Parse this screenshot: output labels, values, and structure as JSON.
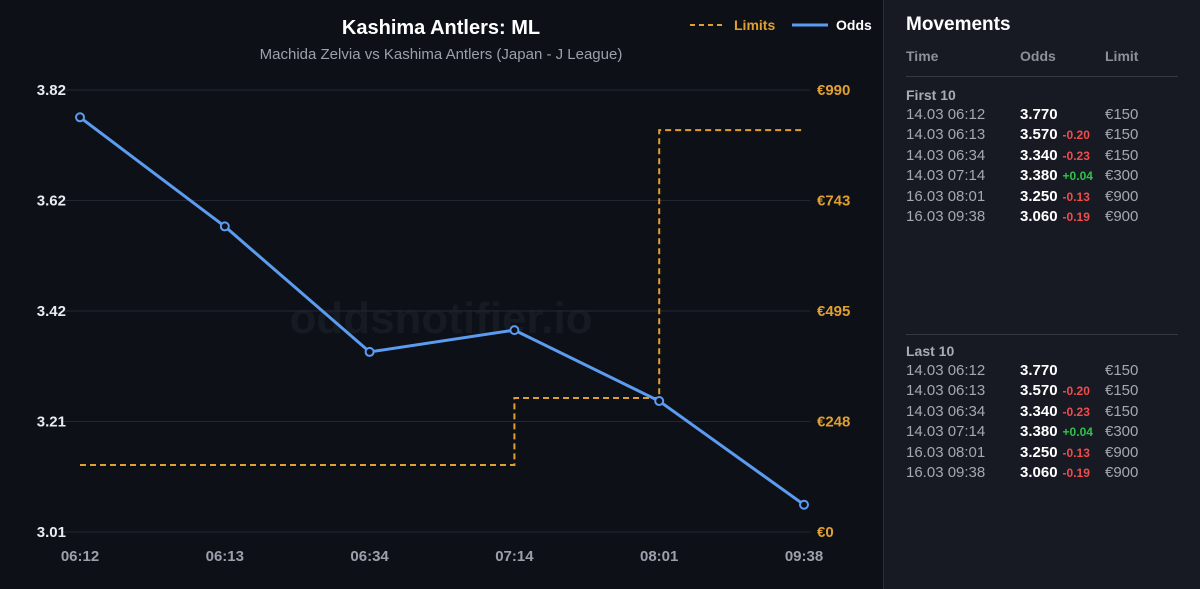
{
  "chart_data": {
    "type": "line",
    "title": "Kashima Antlers: ML",
    "subtitle": "Machida Zelvia vs Kashima Antlers (Japan - J League)",
    "watermark": "oddsnotifier.io",
    "categories": [
      "06:12",
      "06:13",
      "06:34",
      "07:14",
      "08:01",
      "09:38"
    ],
    "series": [
      {
        "name": "Odds",
        "axis": "left",
        "style": "solid",
        "color": "#5b9cf0",
        "values": [
          3.77,
          3.57,
          3.34,
          3.38,
          3.25,
          3.06
        ]
      },
      {
        "name": "Limits",
        "axis": "right",
        "style": "dashed-step",
        "color": "#e0a030",
        "values": [
          150,
          150,
          150,
          300,
          900,
          900
        ]
      }
    ],
    "y_left": {
      "ticks": [
        "3.82",
        "3.62",
        "3.42",
        "3.21",
        "3.01"
      ],
      "min": 3.01,
      "max": 3.82
    },
    "y_right": {
      "ticks": [
        "€990",
        "€743",
        "€495",
        "€248",
        "€0"
      ],
      "min": 0,
      "max": 990
    },
    "legend": {
      "position": "top-right",
      "items": [
        "Limits",
        "Odds"
      ]
    },
    "grid": true
  },
  "movements": {
    "title": "Movements",
    "columns": [
      "Time",
      "Odds",
      "Limit"
    ],
    "groups": [
      {
        "title": "First 10",
        "rows": [
          {
            "time": "14.03 06:12",
            "odds": "3.770",
            "delta": "",
            "limit": "€150"
          },
          {
            "time": "14.03 06:13",
            "odds": "3.570",
            "delta": "-0.20",
            "limit": "€150"
          },
          {
            "time": "14.03 06:34",
            "odds": "3.340",
            "delta": "-0.23",
            "limit": "€150"
          },
          {
            "time": "14.03 07:14",
            "odds": "3.380",
            "delta": "+0.04",
            "limit": "€300"
          },
          {
            "time": "16.03 08:01",
            "odds": "3.250",
            "delta": "-0.13",
            "limit": "€900"
          },
          {
            "time": "16.03 09:38",
            "odds": "3.060",
            "delta": "-0.19",
            "limit": "€900"
          }
        ]
      },
      {
        "title": "Last 10",
        "rows": [
          {
            "time": "14.03 06:12",
            "odds": "3.770",
            "delta": "",
            "limit": "€150"
          },
          {
            "time": "14.03 06:13",
            "odds": "3.570",
            "delta": "-0.20",
            "limit": "€150"
          },
          {
            "time": "14.03 06:34",
            "odds": "3.340",
            "delta": "-0.23",
            "limit": "€150"
          },
          {
            "time": "14.03 07:14",
            "odds": "3.380",
            "delta": "+0.04",
            "limit": "€300"
          },
          {
            "time": "16.03 08:01",
            "odds": "3.250",
            "delta": "-0.13",
            "limit": "€900"
          },
          {
            "time": "16.03 09:38",
            "odds": "3.060",
            "delta": "-0.19",
            "limit": "€900"
          }
        ]
      }
    ]
  }
}
